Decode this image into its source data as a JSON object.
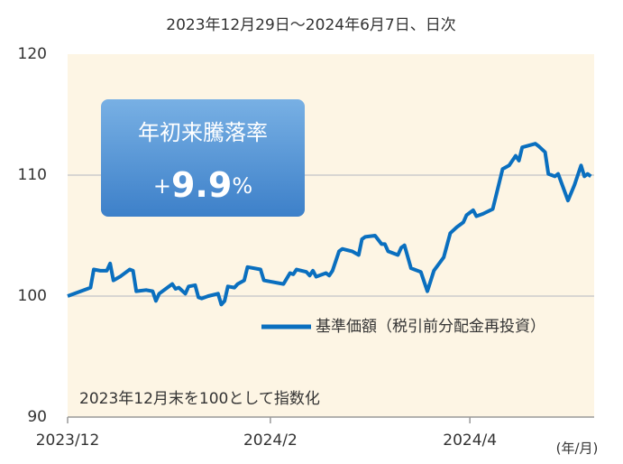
{
  "chart_data": {
    "type": "line",
    "title": "2023年12月29日～2024年6月7日、日次",
    "note": "2023年12月末を100として指数化",
    "x_unit_label": "(年/月)",
    "highlight": {
      "title": "年初来騰落率",
      "sign": "+",
      "value": 9.9,
      "unit": "%"
    },
    "x": [
      0,
      6,
      7,
      8,
      10,
      12,
      13,
      14,
      16,
      19,
      20,
      21,
      24,
      26,
      27,
      28,
      32,
      33,
      34,
      36,
      37,
      39,
      40,
      41,
      43,
      46,
      47,
      48,
      49,
      51,
      52,
      54,
      55,
      59,
      60,
      62,
      66,
      68,
      69,
      70,
      73,
      74,
      75,
      76,
      79,
      80,
      81,
      83,
      84,
      87,
      89,
      90,
      91,
      94,
      96,
      97,
      98,
      101,
      102,
      103,
      105,
      107,
      108,
      110,
      112,
      115,
      117,
      119,
      121,
      122,
      124,
      125,
      127,
      130,
      133,
      135,
      137,
      138,
      139,
      143,
      144,
      146,
      147,
      149,
      150,
      153,
      155,
      157,
      158,
      159,
      160
    ],
    "series": [
      {
        "name": "基準価額（税引前分配金再投資）",
        "color": "#0a6fbf",
        "values": [
          100.0,
          100.6,
          100.7,
          102.2,
          102.1,
          102.1,
          102.7,
          101.3,
          101.6,
          102.2,
          102.1,
          100.4,
          100.5,
          100.4,
          99.6,
          100.2,
          101.0,
          100.6,
          100.7,
          100.2,
          100.8,
          100.9,
          99.9,
          99.8,
          100.0,
          100.2,
          99.3,
          99.6,
          100.8,
          100.7,
          101.0,
          101.3,
          102.4,
          102.2,
          101.3,
          101.2,
          101.0,
          101.9,
          101.8,
          102.2,
          102.0,
          101.7,
          102.1,
          101.6,
          101.9,
          101.7,
          102.1,
          103.7,
          103.9,
          103.7,
          103.4,
          104.7,
          104.9,
          105.0,
          104.3,
          104.3,
          103.7,
          103.4,
          104.0,
          104.2,
          102.3,
          102.1,
          102.0,
          100.4,
          102.1,
          103.2,
          105.2,
          105.7,
          106.1,
          106.7,
          107.1,
          106.6,
          106.8,
          107.2,
          110.5,
          110.8,
          111.6,
          111.2,
          112.3,
          112.6,
          112.4,
          111.9,
          110.1,
          109.9,
          110.1,
          107.9,
          109.2,
          110.8,
          109.9,
          110.1,
          109.9
        ]
      }
    ],
    "xlim": [
      0,
      161
    ],
    "xticks": [
      {
        "value": 0,
        "label": "2023/12"
      },
      {
        "value": 62,
        "label": "2024/2"
      },
      {
        "value": 123,
        "label": "2024/4"
      }
    ],
    "ylim": [
      90,
      120
    ],
    "yticks": [
      90,
      100,
      110,
      120
    ],
    "grid": true
  }
}
